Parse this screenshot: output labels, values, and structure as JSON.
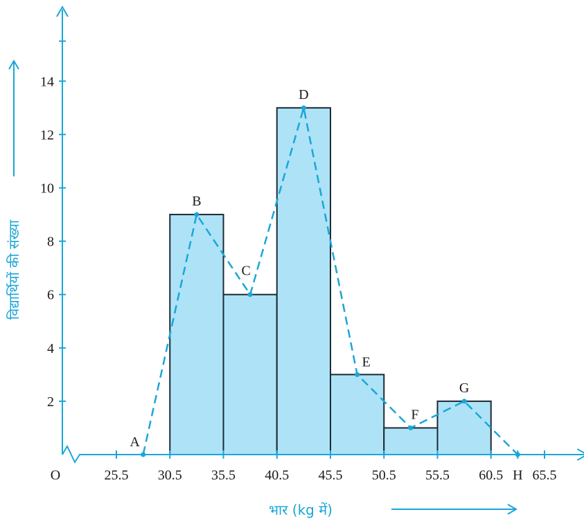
{
  "chart_data": {
    "type": "bar",
    "subtype": "histogram with frequency polygon",
    "title": "",
    "xlabel": "भार (kg में)",
    "ylabel": "विद्यार्थियों की संख्या",
    "ylim": [
      0,
      16
    ],
    "y_ticks": [
      "2",
      "4",
      "6",
      "8",
      "10",
      "12",
      "14"
    ],
    "y_tick_values": [
      2,
      4,
      6,
      8,
      10,
      12,
      14
    ],
    "origin_label": "O",
    "x_ticks": [
      "25.5",
      "30.5",
      "35.5",
      "40.5",
      "45.5",
      "50.5",
      "55.5",
      "60.5",
      "H",
      "65.5"
    ],
    "x_tick_values": [
      25.5,
      30.5,
      35.5,
      40.5,
      45.5,
      50.5,
      55.5,
      60.5,
      63.0,
      65.5
    ],
    "x_axis_break": true,
    "bins": [
      {
        "from": 30.5,
        "to": 35.5,
        "value": 9
      },
      {
        "from": 35.5,
        "to": 40.5,
        "value": 6
      },
      {
        "from": 40.5,
        "to": 45.5,
        "value": 13
      },
      {
        "from": 45.5,
        "to": 50.5,
        "value": 3
      },
      {
        "from": 50.5,
        "to": 55.5,
        "value": 1
      },
      {
        "from": 55.5,
        "to": 60.5,
        "value": 2
      }
    ],
    "polygon": [
      {
        "label": "A",
        "x": 28.0,
        "y": 0
      },
      {
        "label": "B",
        "x": 33.0,
        "y": 9
      },
      {
        "label": "C",
        "x": 38.0,
        "y": 6
      },
      {
        "label": "D",
        "x": 43.0,
        "y": 13
      },
      {
        "label": "E",
        "x": 48.0,
        "y": 3
      },
      {
        "label": "F",
        "x": 53.0,
        "y": 1
      },
      {
        "label": "G",
        "x": 58.0,
        "y": 2
      },
      {
        "label": "H",
        "x": 63.0,
        "y": 0
      }
    ],
    "grid": false,
    "legend": "none",
    "colors": {
      "axis": "#1aa6d8",
      "bar_fill": "#aee2f7",
      "bar_stroke": "#1b2a33",
      "polygon_line": "#1aa6d8",
      "text": "#1a1a1a"
    }
  }
}
